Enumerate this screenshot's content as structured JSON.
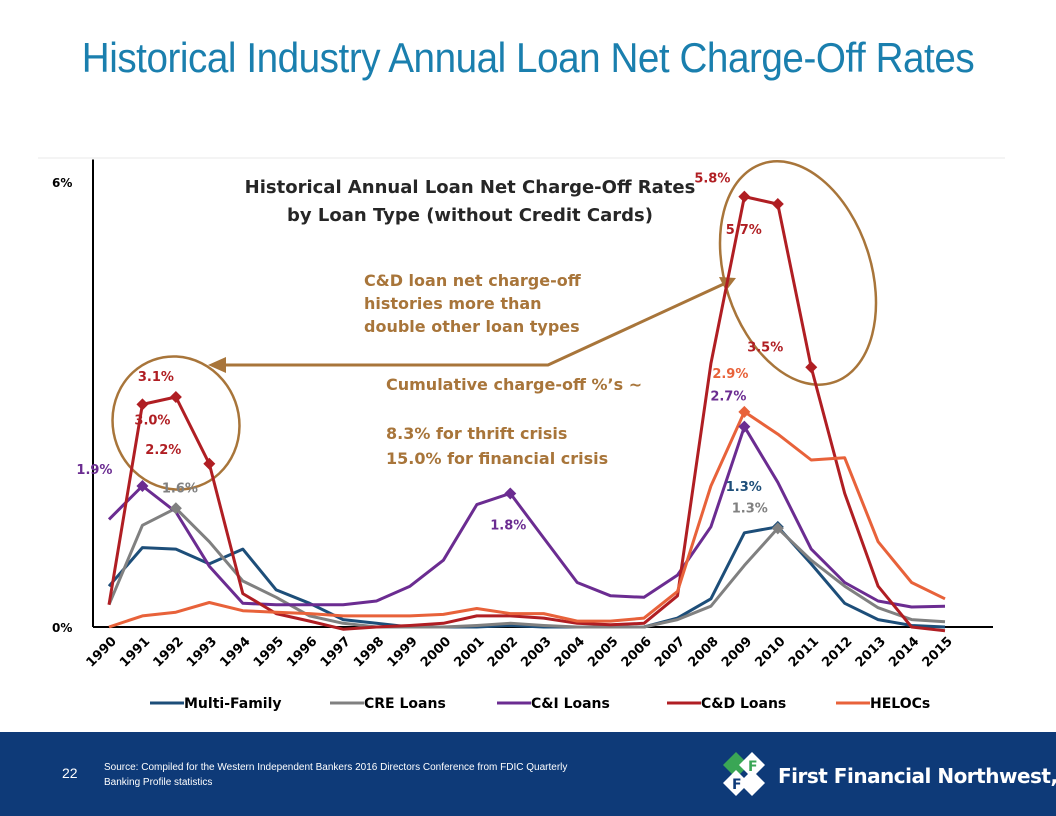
{
  "slide": {
    "title": "Historical Industry Annual Loan Net Charge-Off Rates",
    "page_number": "22",
    "source": "Source: Compiled for the Western Independent Bankers 2016 Directors Conference from FDIC Quarterly Banking Profile statistics",
    "brand": "First Financial Northwest, Inc.",
    "brand_logo_letter": "F"
  },
  "chart_data": {
    "type": "line",
    "title": "Historical Annual Loan Net Charge-Off Rates\nby Loan Type (without Credit Cards)",
    "xlabel": "",
    "ylabel": "",
    "categories": [
      "1990",
      "1991",
      "1992",
      "1993",
      "1994",
      "1995",
      "1996",
      "1997",
      "1998",
      "1999",
      "2000",
      "2001",
      "2002",
      "2003",
      "2004",
      "2005",
      "2006",
      "2007",
      "2008",
      "2009",
      "2010",
      "2011",
      "2012",
      "2013",
      "2014",
      "2015"
    ],
    "yticks": [
      "0%",
      "6%"
    ],
    "ylim": [
      0,
      6.3
    ],
    "legend_position": "bottom",
    "series": [
      {
        "name": "Multi-Family",
        "color": "#1d4e79",
        "values": [
          0.55,
          1.07,
          1.05,
          0.85,
          1.05,
          0.5,
          0.32,
          0.1,
          0.05,
          0.0,
          0.0,
          0.0,
          0.02,
          0.0,
          0.0,
          0.0,
          0.0,
          0.12,
          0.38,
          1.27,
          1.35,
          0.85,
          0.32,
          0.1,
          0.02,
          0.0
        ]
      },
      {
        "name": "CRE Loans",
        "color": "#808080",
        "values": [
          0.3,
          1.37,
          1.6,
          1.15,
          0.62,
          0.4,
          0.15,
          0.05,
          0.0,
          0.0,
          0.0,
          0.02,
          0.05,
          0.02,
          0.0,
          0.0,
          0.0,
          0.1,
          0.28,
          0.83,
          1.33,
          0.9,
          0.55,
          0.26,
          0.1,
          0.07
        ]
      },
      {
        "name": "C&I Loans",
        "color": "#6b2c91",
        "values": [
          1.45,
          1.9,
          1.55,
          0.82,
          0.32,
          0.3,
          0.3,
          0.3,
          0.35,
          0.55,
          0.9,
          1.65,
          1.8,
          1.2,
          0.6,
          0.42,
          0.4,
          0.7,
          1.35,
          2.7,
          1.95,
          1.05,
          0.6,
          0.35,
          0.27,
          0.28
        ]
      },
      {
        "name": "C&D Loans",
        "color": "#b01e23",
        "values": [
          0.3,
          3.0,
          3.1,
          2.2,
          0.45,
          0.18,
          0.08,
          -0.03,
          0.0,
          0.02,
          0.05,
          0.15,
          0.15,
          0.12,
          0.05,
          0.03,
          0.05,
          0.42,
          3.55,
          5.8,
          5.7,
          3.5,
          1.8,
          0.55,
          0.0,
          -0.05
        ]
      },
      {
        "name": "HELOCs",
        "color": "#e8623a",
        "values": [
          0.0,
          0.15,
          0.2,
          0.33,
          0.22,
          0.2,
          0.18,
          0.15,
          0.15,
          0.15,
          0.17,
          0.25,
          0.18,
          0.18,
          0.08,
          0.08,
          0.12,
          0.48,
          1.9,
          2.9,
          2.6,
          2.25,
          2.28,
          1.15,
          0.6,
          0.38
        ]
      }
    ],
    "data_labels": [
      {
        "text": "1.9%",
        "series": "C&I Loans",
        "x": "1991"
      },
      {
        "text": "3.1%",
        "series": "C&D Loans",
        "x": "1992"
      },
      {
        "text": "3.0%",
        "series": "C&D Loans",
        "x": "1991"
      },
      {
        "text": "2.2%",
        "series": "C&D Loans",
        "x": "1993"
      },
      {
        "text": "1.6%",
        "series": "CRE Loans",
        "x": "1992"
      },
      {
        "text": "1.8%",
        "series": "C&I Loans",
        "x": "2002"
      },
      {
        "text": "5.8%",
        "series": "C&D Loans",
        "x": "2009"
      },
      {
        "text": "5.7%",
        "series": "C&D Loans",
        "x": "2010"
      },
      {
        "text": "3.5%",
        "series": "C&D Loans",
        "x": "2011"
      },
      {
        "text": "2.9%",
        "series": "HELOCs",
        "x": "2009"
      },
      {
        "text": "2.7%",
        "series": "C&I Loans",
        "x": "2009"
      },
      {
        "text": "1.3%",
        "series": "Multi-Family",
        "x": "2010"
      },
      {
        "text": "1.3%",
        "series": "CRE Loans",
        "x": "2010"
      }
    ],
    "annotations": {
      "arrow_note": "C&D loan net charge-off\nhistories more than\ndouble other  loan types",
      "cumulative_note": "Cumulative charge-off %’s ~\n\n8.3% for thrift crisis\n15.0% for financial crisis"
    },
    "colors": {
      "annotation": "#a8753a",
      "title": "#262626",
      "axis": "#000000"
    }
  }
}
